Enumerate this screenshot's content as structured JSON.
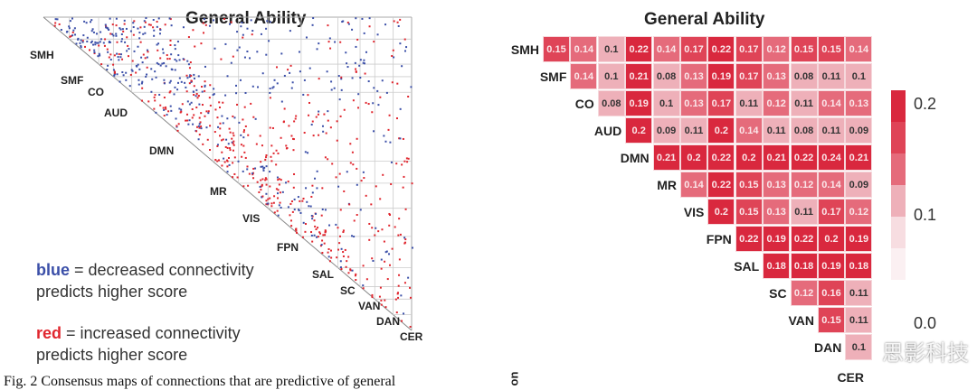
{
  "left_panel": {
    "title": "General Ability",
    "networks": [
      "SMH",
      "SMF",
      "CO",
      "AUD",
      "DMN",
      "MR",
      "VIS",
      "FPN",
      "SAL",
      "SC",
      "VAN",
      "DAN",
      "CER"
    ],
    "legend_blue_word": "blue",
    "legend_blue_rest": " = decreased connectivity",
    "legend_blue_line2": "predicts higher score",
    "legend_red_word": "red",
    "legend_red_rest": " = increased connectivity",
    "legend_red_line2": "predicts higher score",
    "colors": {
      "blue": "#3b4fa8",
      "red": "#e0262e"
    }
  },
  "caption": "Fig. 2 Consensus maps of connections that are predictive of general",
  "side_fragment": "on",
  "chart_data": {
    "type": "heatmap",
    "title": "General Ability",
    "rows": [
      "SMH",
      "SMF",
      "CO",
      "AUD",
      "DMN",
      "MR",
      "VIS",
      "FPN",
      "SAL",
      "SC",
      "VAN",
      "DAN"
    ],
    "bottom_label": "CER",
    "values": [
      [
        "0.15",
        "0.14",
        "0.1",
        "0.22",
        "0.14",
        "0.17",
        "0.22",
        "0.17",
        "0.12",
        "0.15",
        "0.15",
        "0.14"
      ],
      [
        "0.14",
        "0.1",
        "0.21",
        "0.08",
        "0.13",
        "0.19",
        "0.17",
        "0.13",
        "0.08",
        "0.11",
        "0.1"
      ],
      [
        "0.08",
        "0.19",
        "0.1",
        "0.13",
        "0.17",
        "0.11",
        "0.12",
        "0.11",
        "0.14",
        "0.13"
      ],
      [
        "0.2",
        "0.09",
        "0.11",
        "0.2",
        "0.14",
        "0.11",
        "0.08",
        "0.11",
        "0.09"
      ],
      [
        "0.21",
        "0.2",
        "0.22",
        "0.2",
        "0.21",
        "0.22",
        "0.24",
        "0.21"
      ],
      [
        "0.14",
        "0.22",
        "0.15",
        "0.13",
        "0.12",
        "0.14",
        "0.09"
      ],
      [
        "0.2",
        "0.15",
        "0.13",
        "0.11",
        "0.17",
        "0.12"
      ],
      [
        "0.22",
        "0.19",
        "0.22",
        "0.2",
        "0.19"
      ],
      [
        "0.18",
        "0.18",
        "0.19",
        "0.18"
      ],
      [
        "0.12",
        "0.16",
        "0.11"
      ],
      [
        "0.15",
        "0.11"
      ],
      [
        "0.1"
      ]
    ],
    "colorbar_ticks": [
      "0.2",
      "0.1",
      "0.0"
    ],
    "colorbar_range": [
      0,
      0.22
    ]
  },
  "watermark": "思影科技"
}
